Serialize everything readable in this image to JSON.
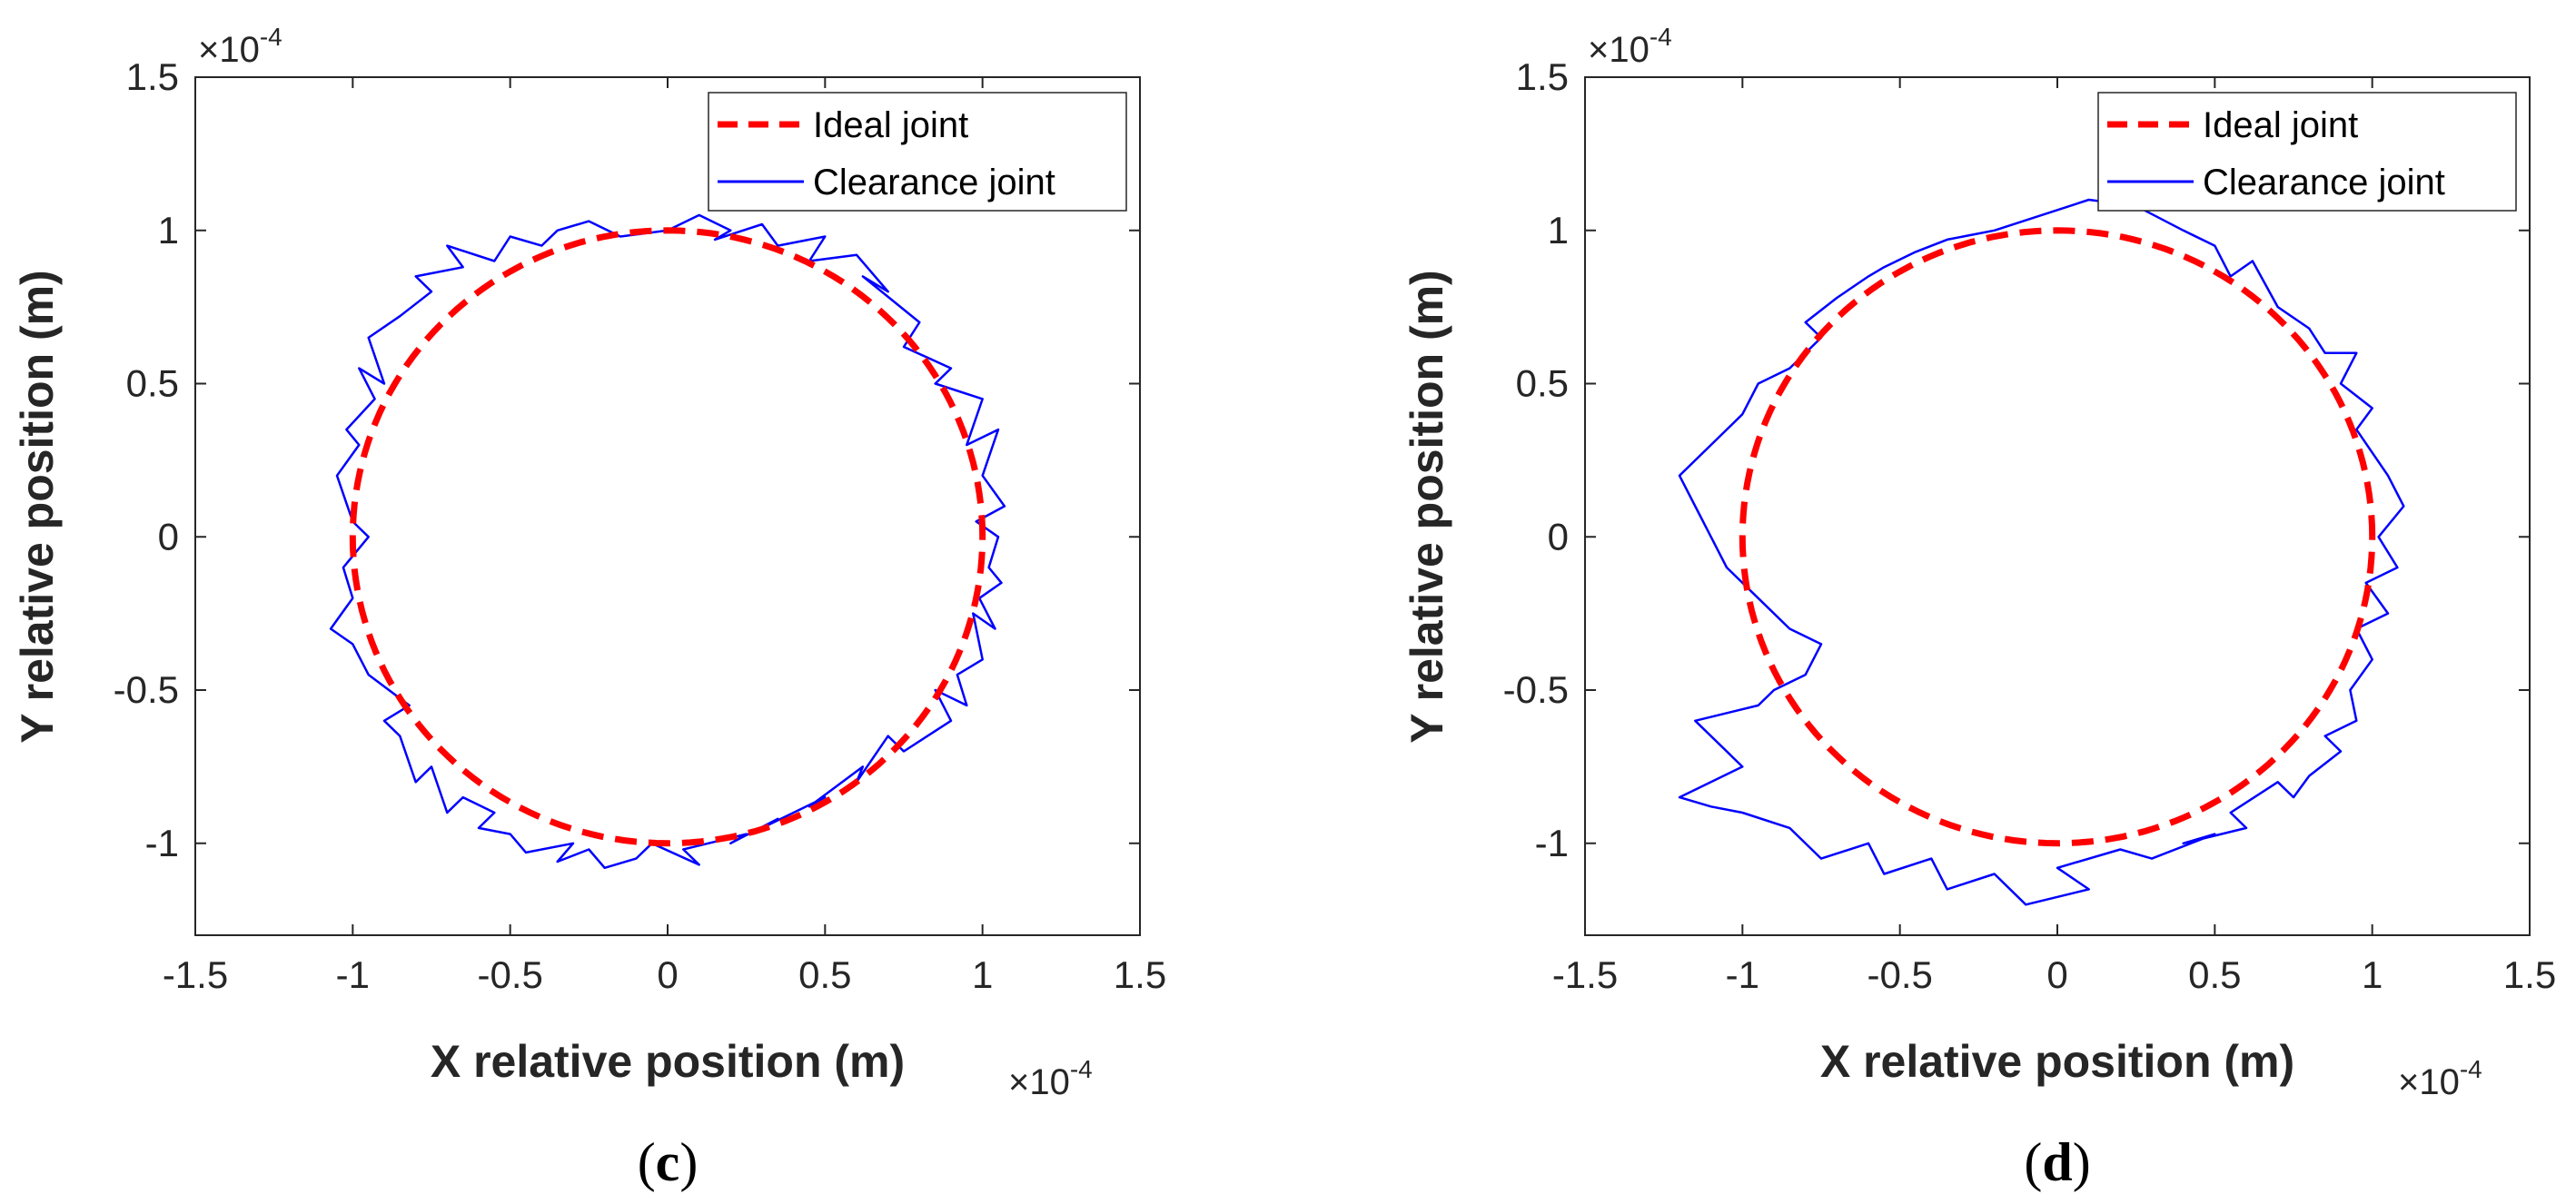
{
  "chart_data": [
    {
      "type": "line",
      "caption_letter": "c",
      "xlabel": "X relative position (m)",
      "ylabel": "Y relative position (m)",
      "x_exponent": "×10",
      "x_exponent_power": "-4",
      "y_exponent": "×10",
      "y_exponent_power": "-4",
      "xlim": [
        -1.5,
        1.5
      ],
      "ylim": [
        -1.3,
        1.5
      ],
      "xticks": [
        -1.5,
        -1,
        -0.5,
        0,
        0.5,
        1,
        1.5
      ],
      "xtick_labels": [
        "-1.5",
        "-1",
        "-0.5",
        "0",
        "0.5",
        "1",
        "1.5"
      ],
      "yticks": [
        -1,
        -0.5,
        0,
        0.5,
        1,
        1.5
      ],
      "ytick_labels": [
        "-1",
        "-0.5",
        "0",
        "0.5",
        "1",
        "1.5"
      ],
      "legend": [
        "Ideal joint",
        "Clearance joint"
      ],
      "legend_position": "top-right",
      "series": [
        {
          "name": "Ideal joint",
          "style": "dashed",
          "color": "#ff0000",
          "shape": "circle",
          "center": [
            0,
            0
          ],
          "radius": 1.0
        },
        {
          "name": "Clearance joint",
          "style": "solid",
          "color": "#0000ff",
          "x": [
            0.0,
            0.1,
            0.2,
            0.15,
            0.3,
            0.35,
            0.5,
            0.45,
            0.6,
            0.7,
            0.62,
            0.8,
            0.75,
            0.9,
            0.85,
            1.0,
            0.95,
            1.05,
            1.0,
            1.07,
            0.98,
            1.05,
            1.02,
            1.06,
            0.99,
            1.04,
            0.97,
            1.0,
            0.92,
            0.95,
            0.85,
            0.9,
            0.75,
            0.7,
            0.6,
            0.62,
            0.45,
            0.5,
            0.3,
            0.35,
            0.2,
            0.25,
            0.05,
            0.1,
            -0.05,
            -0.1,
            -0.2,
            -0.25,
            -0.35,
            -0.3,
            -0.45,
            -0.5,
            -0.6,
            -0.55,
            -0.65,
            -0.7,
            -0.75,
            -0.8,
            -0.85,
            -0.9,
            -0.82,
            -0.95,
            -1.0,
            -1.07,
            -1.0,
            -1.03,
            -0.95,
            -1.0,
            -1.05,
            -0.98,
            -1.02,
            -0.93,
            -0.98,
            -0.9,
            -0.95,
            -0.85,
            -0.75,
            -0.8,
            -0.65,
            -0.7,
            -0.55,
            -0.5,
            -0.4,
            -0.35,
            -0.25,
            -0.15,
            0.0
          ],
          "y": [
            1.0,
            1.05,
            1.0,
            0.97,
            1.02,
            0.95,
            0.98,
            0.9,
            0.92,
            0.8,
            0.85,
            0.7,
            0.62,
            0.55,
            0.5,
            0.45,
            0.3,
            0.35,
            0.2,
            0.1,
            0.05,
            0.0,
            -0.1,
            -0.15,
            -0.2,
            -0.3,
            -0.25,
            -0.4,
            -0.45,
            -0.55,
            -0.5,
            -0.6,
            -0.7,
            -0.65,
            -0.8,
            -0.75,
            -0.88,
            -0.85,
            -0.95,
            -0.92,
            -1.0,
            -0.97,
            -1.02,
            -1.07,
            -1.0,
            -1.05,
            -1.08,
            -1.02,
            -1.06,
            -1.0,
            -1.03,
            -0.97,
            -0.95,
            -0.9,
            -0.85,
            -0.9,
            -0.75,
            -0.8,
            -0.65,
            -0.6,
            -0.55,
            -0.45,
            -0.35,
            -0.3,
            -0.2,
            -0.1,
            0.0,
            0.05,
            0.2,
            0.3,
            0.35,
            0.45,
            0.55,
            0.5,
            0.65,
            0.72,
            0.8,
            0.85,
            0.88,
            0.95,
            0.9,
            0.98,
            0.95,
            1.0,
            1.03,
            0.98,
            1.0
          ]
        }
      ]
    },
    {
      "type": "line",
      "caption_letter": "d",
      "xlabel": "X relative position (m)",
      "ylabel": "Y relative position (m)",
      "x_exponent": "×10",
      "x_exponent_power": "-4",
      "y_exponent": "×10",
      "y_exponent_power": "-4",
      "xlim": [
        -1.5,
        1.5
      ],
      "ylim": [
        -1.3,
        1.5
      ],
      "xticks": [
        -1.5,
        -1,
        -0.5,
        0,
        0.5,
        1,
        1.5
      ],
      "xtick_labels": [
        "-1.5",
        "-1",
        "-0.5",
        "0",
        "0.5",
        "1",
        "1.5"
      ],
      "yticks": [
        -1,
        -0.5,
        0,
        0.5,
        1,
        1.5
      ],
      "ytick_labels": [
        "-1",
        "-0.5",
        "0",
        "0.5",
        "1",
        "1.5"
      ],
      "legend": [
        "Ideal joint",
        "Clearance joint"
      ],
      "legend_position": "top-right",
      "series": [
        {
          "name": "Ideal joint",
          "style": "dashed",
          "color": "#ff0000",
          "shape": "circle",
          "center": [
            0,
            0
          ],
          "radius": 1.0
        },
        {
          "name": "Clearance joint",
          "style": "solid",
          "color": "#0000ff",
          "x": [
            -0.2,
            -0.05,
            0.1,
            0.25,
            0.4,
            0.5,
            0.55,
            0.62,
            0.7,
            0.8,
            0.85,
            0.95,
            0.9,
            1.0,
            0.95,
            1.05,
            1.1,
            1.02,
            1.08,
            0.98,
            1.05,
            0.95,
            1.0,
            0.93,
            0.95,
            0.85,
            0.9,
            0.8,
            0.75,
            0.7,
            0.55,
            0.6,
            0.4,
            0.5,
            0.3,
            0.2,
            0.0,
            0.1,
            -0.1,
            -0.2,
            -0.35,
            -0.4,
            -0.55,
            -0.6,
            -0.75,
            -0.85,
            -1.0,
            -1.1,
            -1.2,
            -1.0,
            -1.15,
            -0.95,
            -0.9,
            -0.8,
            -0.75,
            -0.85,
            -0.95,
            -1.05,
            -1.1,
            -1.15,
            -1.2,
            -1.1,
            -1.0,
            -0.95,
            -0.85,
            -0.75,
            -0.8,
            -0.7,
            -0.6,
            -0.55,
            -0.45,
            -0.35,
            -0.2
          ],
          "y": [
            1.0,
            1.05,
            1.1,
            1.08,
            1.0,
            0.95,
            0.85,
            0.9,
            0.75,
            0.68,
            0.6,
            0.6,
            0.5,
            0.42,
            0.35,
            0.2,
            0.1,
            0.0,
            -0.1,
            -0.15,
            -0.25,
            -0.3,
            -0.4,
            -0.5,
            -0.6,
            -0.65,
            -0.7,
            -0.78,
            -0.85,
            -0.8,
            -0.9,
            -0.95,
            -1.0,
            -0.97,
            -1.05,
            -1.02,
            -1.08,
            -1.15,
            -1.2,
            -1.1,
            -1.15,
            -1.05,
            -1.1,
            -1.0,
            -1.05,
            -0.95,
            -0.9,
            -0.88,
            -0.85,
            -0.75,
            -0.6,
            -0.55,
            -0.5,
            -0.45,
            -0.35,
            -0.3,
            -0.2,
            -0.1,
            0.0,
            0.1,
            0.2,
            0.3,
            0.4,
            0.5,
            0.55,
            0.65,
            0.7,
            0.78,
            0.85,
            0.88,
            0.93,
            0.97,
            1.0
          ]
        }
      ]
    }
  ]
}
